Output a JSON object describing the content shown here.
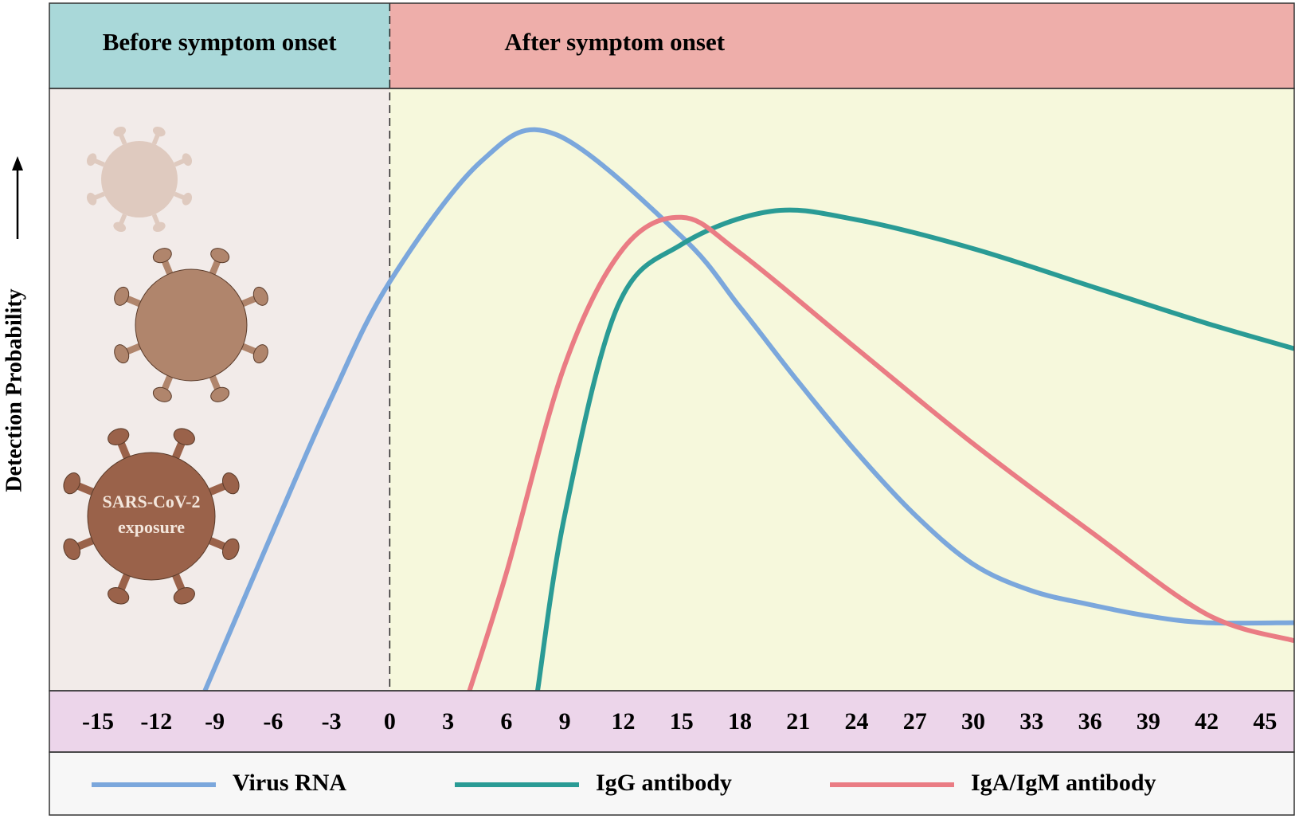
{
  "chart_data": {
    "type": "line",
    "ylabel": "Detection Probability",
    "regions": [
      {
        "label": "Before symptom onset",
        "color": "#a9d8d9",
        "background": "#f2ebe9"
      },
      {
        "label": "After symptom onset",
        "color": "#eeaeaa",
        "background": "#f6f8dc"
      }
    ],
    "annotation": [
      "SARS-CoV-2",
      "exposure"
    ],
    "xlim": [
      -17.5,
      46.5
    ],
    "xticks": [
      -15,
      -12,
      -9,
      -6,
      -3,
      0,
      3,
      6,
      9,
      12,
      15,
      18,
      21,
      24,
      27,
      30,
      33,
      36,
      39,
      42,
      45
    ],
    "ylim": [
      0,
      100
    ],
    "series": [
      {
        "name": "Virus RNA",
        "color": "#7ba7dc",
        "x": [
          -9.5,
          -6,
          -3,
          0,
          4.7,
          8.5,
          15,
          18,
          21,
          24,
          27,
          30,
          33,
          36,
          39,
          42,
          46.5
        ],
        "values": [
          0,
          26.5,
          48.6,
          67.9,
          87.9,
          92.4,
          75.4,
          63.7,
          51.3,
          39.6,
          29.2,
          21,
          16.6,
          14.3,
          12.4,
          11.3,
          11.3
        ]
      },
      {
        "name": "IgG antibody",
        "color": "#2a9b95",
        "x": [
          7.6,
          9,
          11.7,
          15,
          19.6,
          24,
          30,
          36,
          42,
          46.5
        ],
        "values": [
          0,
          29.2,
          63.7,
          74.1,
          79.6,
          78.2,
          73.4,
          67.2,
          61,
          56.8
        ]
      },
      {
        "name": "IgA/IgM antibody",
        "color": "#ea7c84",
        "x": [
          4.1,
          6,
          9,
          12,
          15,
          18,
          24,
          30,
          36,
          42,
          46.5
        ],
        "values": [
          0,
          19.6,
          54.1,
          73.4,
          78.6,
          72.7,
          56.8,
          41,
          26.5,
          12.7,
          8.3
        ]
      }
    ]
  }
}
